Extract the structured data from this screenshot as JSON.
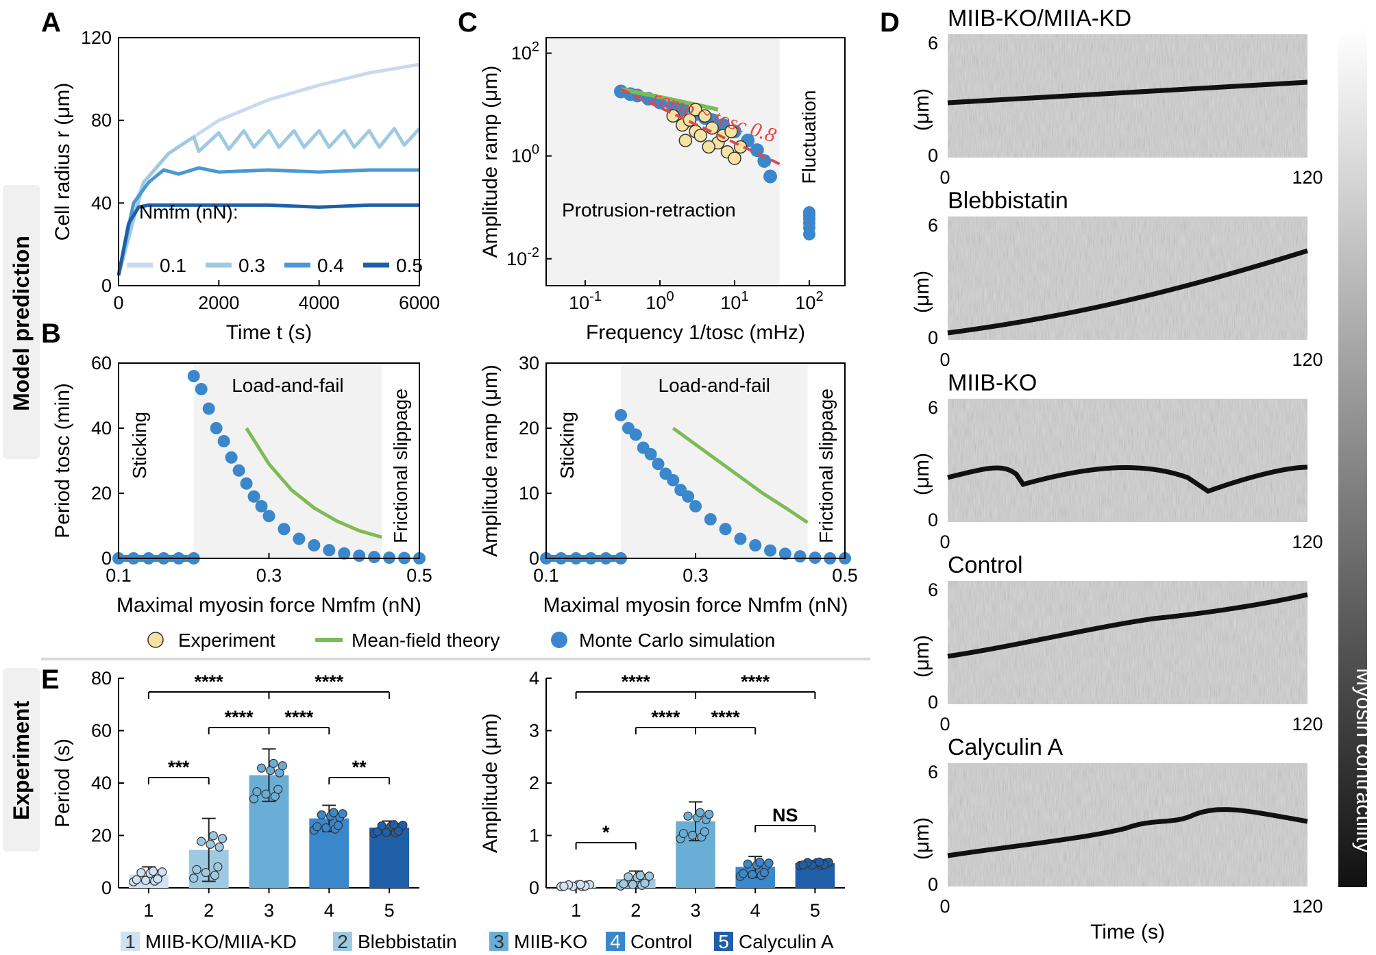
{
  "side_labels": {
    "top": "Model prediction",
    "bottom": "Experiment"
  },
  "legend": {
    "experiment": "Experiment",
    "mean_field": "Mean-field theory",
    "monte_carlo": "Monte Carlo simulation"
  },
  "colors": {
    "nf01": "#c6dbef",
    "nf03": "#9ecae1",
    "nf04": "#4a98d3",
    "nf05": "#1f5fa8",
    "monte_carlo": "#3a87cc",
    "mean_field": "#7dbb54",
    "experiment_fill": "#f6e3a1",
    "fit_line": "#e04848",
    "shade": "#f2f2f2",
    "bar1": "#cfe2f3",
    "bar2": "#9ecae1",
    "bar3": "#6aaed6",
    "bar4": "#3a87cc",
    "bar5": "#1f5fa8"
  },
  "chart_data": [
    {
      "panel": "A",
      "type": "line",
      "xlabel": "Time t (s)",
      "ylabel": "Cell radius r (μm)",
      "xlim": [
        0,
        6000
      ],
      "ylim": [
        0,
        120
      ],
      "xticks": [
        "0",
        "2000",
        "4000",
        "6000"
      ],
      "yticks": [
        "0",
        "40",
        "80",
        "120"
      ],
      "legend_title": "Nmfm (nN):",
      "series": [
        {
          "name": "0.1",
          "x": [
            0,
            250,
            500,
            1000,
            1500,
            2000,
            3000,
            4000,
            5000,
            6000
          ],
          "y": [
            5,
            35,
            50,
            64,
            72,
            80,
            90,
            97,
            103,
            107
          ]
        },
        {
          "name": "0.3",
          "x": [
            0,
            500,
            1000,
            1500,
            1600,
            2000,
            2200,
            2500,
            2700,
            3000,
            3200,
            3500,
            3700,
            4000,
            4200,
            4500,
            4700,
            5000,
            5200,
            5500,
            5700,
            6000
          ],
          "y": [
            5,
            50,
            64,
            72,
            65,
            74,
            66,
            75,
            67,
            75,
            67,
            75,
            67,
            75,
            67,
            75,
            67,
            75,
            67,
            76,
            68,
            76
          ]
        },
        {
          "name": "0.4",
          "x": [
            0,
            300,
            600,
            900,
            1200,
            1600,
            2000,
            3000,
            4000,
            5000,
            6000
          ],
          "y": [
            5,
            40,
            50,
            56,
            54,
            57,
            55,
            56,
            55,
            56,
            56
          ]
        },
        {
          "name": "0.5",
          "x": [
            0,
            200,
            400,
            600,
            1000,
            2000,
            3000,
            4000,
            5000,
            6000
          ],
          "y": [
            5,
            30,
            38,
            39,
            39,
            39,
            39,
            38,
            39,
            39
          ]
        }
      ]
    },
    {
      "panel": "C",
      "type": "scatter",
      "xlabel": "Frequency 1/tosc (mHz)",
      "ylabel": "Amplitude ramp (μm)",
      "xscale": "log",
      "yscale": "log",
      "xlim": [
        0.03,
        300
      ],
      "ylim": [
        0.003,
        200
      ],
      "xticks": [
        "10-1",
        "100",
        "101",
        "102"
      ],
      "yticks": [
        "10-2",
        "100",
        "102"
      ],
      "annotation": "ramp ~ tosc 0.8",
      "regions": [
        "Protrusion-retraction",
        "Fluctuation"
      ],
      "monte_carlo": {
        "x": [
          0.3,
          0.4,
          0.5,
          0.7,
          1,
          1.5,
          2,
          3,
          4,
          5,
          7,
          10,
          15,
          20,
          25,
          30
        ],
        "y": [
          18,
          16,
          15,
          13,
          11,
          9,
          8,
          6.5,
          5.5,
          5,
          4,
          3,
          2,
          1.3,
          0.8,
          0.4
        ]
      },
      "fluctuation": {
        "x": [
          100,
          100,
          100,
          100,
          100,
          100
        ],
        "y": [
          0.03,
          0.04,
          0.05,
          0.06,
          0.07,
          0.08
        ]
      },
      "mean_field": {
        "x": [
          0.3,
          1,
          3,
          6
        ],
        "y": [
          20,
          14,
          10,
          8
        ]
      },
      "experiment": {
        "x": [
          1.5,
          2,
          2.5,
          3,
          3,
          3.5,
          4,
          5,
          6,
          7,
          8,
          9,
          10,
          12,
          2.2,
          4.5
        ],
        "y": [
          6,
          4,
          5,
          3,
          8,
          2.5,
          6,
          3.5,
          1.8,
          2.5,
          1.2,
          3,
          0.9,
          1.5,
          2,
          1.5
        ]
      },
      "fit": {
        "x": [
          0.3,
          40
        ],
        "y": [
          20,
          0.7
        ]
      }
    },
    {
      "panel": "B-left",
      "type": "scatter",
      "xlabel": "Maximal myosin force Nmfm (nN)",
      "ylabel": "Period tosc (min)",
      "xlim": [
        0.1,
        0.5
      ],
      "ylim": [
        0,
        60
      ],
      "xticks": [
        "0.1",
        "0.3",
        "0.5"
      ],
      "yticks": [
        "0",
        "20",
        "40",
        "60"
      ],
      "regions": [
        "Sticking",
        "Load-and-fail",
        "Frictional slippage"
      ],
      "monte_carlo": {
        "x": [
          0.1,
          0.12,
          0.14,
          0.16,
          0.18,
          0.2,
          0.2,
          0.21,
          0.22,
          0.23,
          0.24,
          0.25,
          0.26,
          0.27,
          0.28,
          0.29,
          0.3,
          0.32,
          0.34,
          0.36,
          0.38,
          0.4,
          0.42,
          0.44,
          0.46,
          0.48,
          0.5
        ],
        "y": [
          0,
          0,
          0,
          0,
          0,
          0,
          56,
          52,
          46,
          40,
          36,
          31,
          27,
          23,
          19,
          16,
          13,
          9,
          6,
          4,
          2.5,
          1.5,
          0.8,
          0.4,
          0.2,
          0.1,
          0
        ]
      },
      "mean_field": {
        "x": [
          0.27,
          0.3,
          0.33,
          0.36,
          0.39,
          0.42,
          0.45
        ],
        "y": [
          40,
          29,
          21,
          15.5,
          11.5,
          8.5,
          6.5
        ]
      }
    },
    {
      "panel": "B-right",
      "type": "scatter",
      "xlabel": "Maximal myosin force Nmfm (nN)",
      "ylabel": "Amplitude ramp (μm)",
      "xlim": [
        0.1,
        0.5
      ],
      "ylim": [
        0,
        30
      ],
      "xticks": [
        "0.1",
        "0.3",
        "0.5"
      ],
      "yticks": [
        "0",
        "10",
        "20",
        "30"
      ],
      "regions": [
        "Sticking",
        "Load-and-fail",
        "Frictional slippage"
      ],
      "monte_carlo": {
        "x": [
          0.1,
          0.12,
          0.14,
          0.16,
          0.18,
          0.2,
          0.2,
          0.21,
          0.22,
          0.23,
          0.24,
          0.25,
          0.26,
          0.27,
          0.28,
          0.29,
          0.3,
          0.32,
          0.34,
          0.36,
          0.38,
          0.4,
          0.42,
          0.44,
          0.46,
          0.48,
          0.5
        ],
        "y": [
          0,
          0,
          0,
          0,
          0,
          0,
          22,
          20,
          19,
          17,
          16,
          14.5,
          13,
          12,
          10.5,
          9.5,
          8,
          6,
          4.5,
          3,
          2,
          1.2,
          0.7,
          0.3,
          0.1,
          0,
          0
        ]
      },
      "mean_field": {
        "x": [
          0.27,
          0.3,
          0.33,
          0.36,
          0.39,
          0.42,
          0.45
        ],
        "y": [
          20,
          17.5,
          15,
          12.5,
          10,
          7.8,
          5.5
        ]
      }
    },
    {
      "panel": "E-left",
      "type": "bar",
      "ylabel": "Period (s)",
      "categories": [
        "1",
        "2",
        "3",
        "4",
        "5"
      ],
      "values": [
        5,
        14.5,
        43,
        26.5,
        23
      ],
      "errors": [
        3,
        12,
        10,
        5,
        2.5
      ],
      "ylim": [
        0,
        80
      ],
      "yticks": [
        "0",
        "20",
        "40",
        "60",
        "80"
      ],
      "significance": [
        {
          "from": 1,
          "to": 3,
          "label": "****"
        },
        {
          "from": 3,
          "to": 5,
          "label": "****"
        },
        {
          "from": 2,
          "to": 3,
          "label": "****"
        },
        {
          "from": 3,
          "to": 4,
          "label": "****"
        },
        {
          "from": 1,
          "to": 2,
          "label": "***"
        },
        {
          "from": 4,
          "to": 5,
          "label": "**"
        }
      ]
    },
    {
      "panel": "E-right",
      "type": "bar",
      "ylabel": "Amplitude (μm)",
      "categories": [
        "1",
        "2",
        "3",
        "4",
        "5"
      ],
      "values": [
        0.05,
        0.17,
        1.27,
        0.4,
        0.47
      ],
      "errors": [
        0.03,
        0.15,
        0.37,
        0.2,
        0.05
      ],
      "ylim": [
        0,
        4
      ],
      "yticks": [
        "0",
        "1",
        "2",
        "3",
        "4"
      ],
      "significance": [
        {
          "from": 1,
          "to": 3,
          "label": "****"
        },
        {
          "from": 3,
          "to": 5,
          "label": "****"
        },
        {
          "from": 2,
          "to": 3,
          "label": "****"
        },
        {
          "from": 3,
          "to": 4,
          "label": "****"
        },
        {
          "from": 1,
          "to": 2,
          "label": "*"
        },
        {
          "from": 4,
          "to": 5,
          "label": "NS"
        }
      ]
    }
  ],
  "bar_legend": [
    {
      "num": "1",
      "label": "MIIB-KO/MIIA-KD"
    },
    {
      "num": "2",
      "label": "Blebbistatin"
    },
    {
      "num": "3",
      "label": "MIIB-KO"
    },
    {
      "num": "4",
      "label": "Control"
    },
    {
      "num": "5",
      "label": "Calyculin A"
    }
  ],
  "kymographs": {
    "ylabel": "(μm)",
    "xlabel": "Time (s)",
    "ytick_top": "6",
    "ytick_bottom": "0",
    "xtick_left": "0",
    "xtick_right": "120",
    "gradient_label": "Myosin contractility",
    "items": [
      {
        "title": "MIIB-KO/MIIA-KD"
      },
      {
        "title": "Blebbistatin"
      },
      {
        "title": "MIIB-KO"
      },
      {
        "title": "Control"
      },
      {
        "title": "Calyculin A"
      }
    ]
  }
}
